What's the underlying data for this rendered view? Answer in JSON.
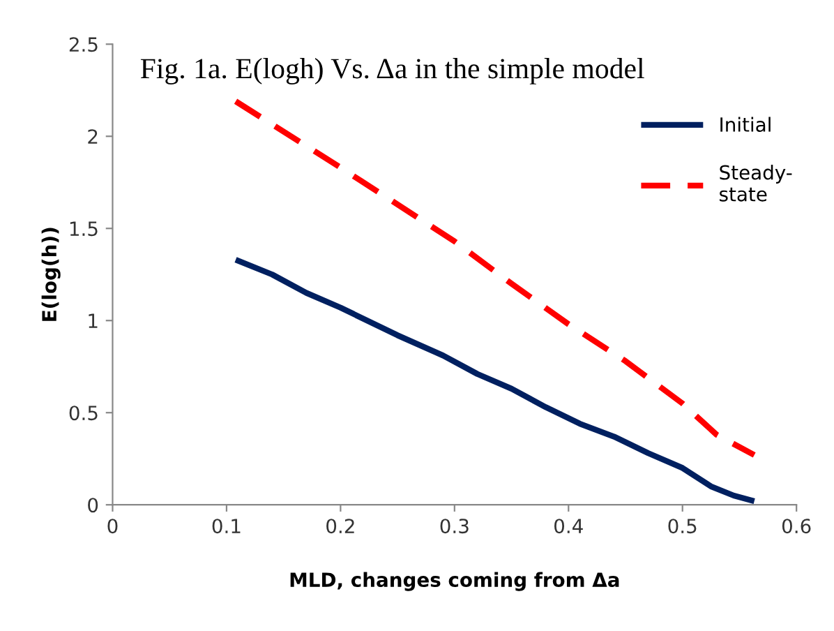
{
  "chart_data": {
    "type": "line",
    "title": "Fig. 1a. E(logh) Vs. Δa in the simple model",
    "xlabel": "MLD, changes coming from Δa",
    "ylabel": "E(log(h))",
    "xlim": [
      0,
      0.6
    ],
    "xticks": [
      0,
      0.1,
      0.2,
      0.3,
      0.4,
      0.5,
      0.6
    ],
    "ylim": [
      0,
      2.5
    ],
    "yticks": [
      0,
      0.5,
      1,
      1.5,
      2,
      2.5
    ],
    "grid": false,
    "legend": "top right",
    "marker": "none",
    "series": [
      {
        "name": "Initial",
        "color": "#002060",
        "line_style": "solid",
        "x": [
          0.108,
          0.14,
          0.17,
          0.2,
          0.25,
          0.29,
          0.32,
          0.35,
          0.38,
          0.41,
          0.44,
          0.47,
          0.5,
          0.525,
          0.545,
          0.563
        ],
        "values": [
          1.33,
          1.25,
          1.15,
          1.07,
          0.92,
          0.81,
          0.71,
          0.63,
          0.53,
          0.44,
          0.37,
          0.28,
          0.2,
          0.1,
          0.05,
          0.02
        ]
      },
      {
        "name": "Steady-\nstate",
        "color": "#ff0000",
        "line_style": "dashed",
        "x": [
          0.108,
          0.2,
          0.3,
          0.35,
          0.4,
          0.45,
          0.5,
          0.53,
          0.563
        ],
        "values": [
          2.19,
          1.83,
          1.43,
          1.2,
          0.98,
          0.78,
          0.55,
          0.38,
          0.27
        ]
      }
    ]
  }
}
